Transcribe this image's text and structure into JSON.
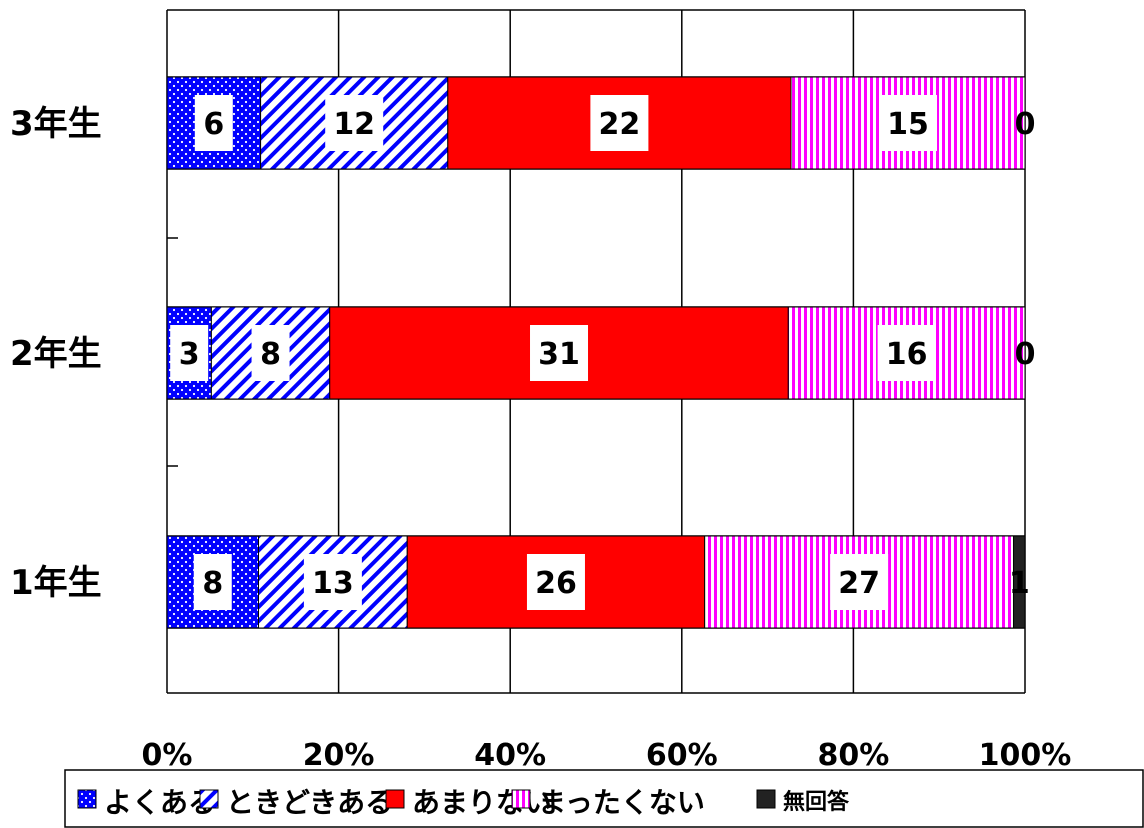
{
  "chart_data": {
    "type": "bar",
    "orientation": "horizontal",
    "stacked": "percent",
    "categories": [
      "3年生",
      "2年生",
      "1年生"
    ],
    "series": [
      {
        "name": "よくある",
        "values": [
          6,
          3,
          8
        ],
        "color": "#0000ff",
        "pattern": "dots"
      },
      {
        "name": "ときどきある",
        "values": [
          12,
          8,
          13
        ],
        "color": "#0000ff",
        "pattern": "diagonal"
      },
      {
        "name": "あまりない",
        "values": [
          22,
          31,
          26
        ],
        "color": "#ff0000",
        "pattern": "solid"
      },
      {
        "name": "まったくない",
        "values": [
          15,
          16,
          27
        ],
        "color": "#ff00ff",
        "pattern": "vertical"
      },
      {
        "name": "無回答",
        "values": [
          0,
          0,
          1
        ],
        "color": "#222222",
        "pattern": "solid"
      }
    ],
    "xticks": [
      "0%",
      "20%",
      "40%",
      "60%",
      "80%",
      "100%"
    ],
    "xlim": [
      0,
      100
    ],
    "grid": true,
    "legend_position": "bottom",
    "title": "",
    "xlabel": "",
    "ylabel": ""
  }
}
